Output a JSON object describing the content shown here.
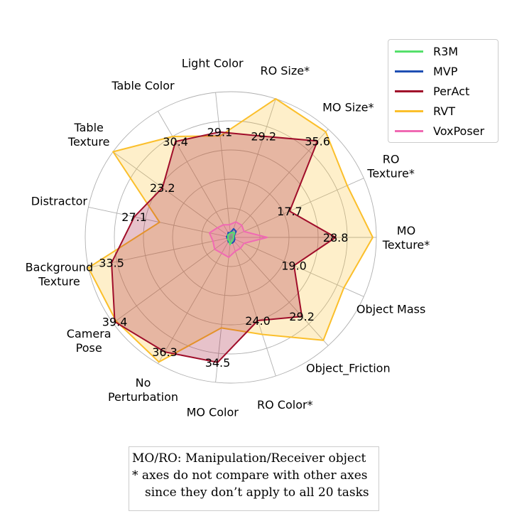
{
  "chart_data": {
    "type": "radar",
    "rmax": 40,
    "grid_levels": [
      8,
      16,
      24,
      32,
      40
    ],
    "grid": true,
    "legend_placement": "top-right",
    "axes": [
      {
        "label": [
          "MO",
          "Texture*"
        ]
      },
      {
        "label": [
          "RO",
          "Texture*"
        ]
      },
      {
        "label": [
          "MO Size*"
        ]
      },
      {
        "label": [
          "RO Size*"
        ]
      },
      {
        "label": [
          "Light Color"
        ]
      },
      {
        "label": [
          "Table Color"
        ]
      },
      {
        "label": [
          "Table",
          "Texture"
        ]
      },
      {
        "label": [
          "Distractor"
        ]
      },
      {
        "label": [
          "Background",
          "Texture"
        ]
      },
      {
        "label": [
          "Camera",
          "Pose"
        ]
      },
      {
        "label": [
          "No",
          "Perturbation"
        ]
      },
      {
        "label": [
          "MO Color"
        ]
      },
      {
        "label": [
          "RO Color*"
        ]
      },
      {
        "label": [
          "Object_Friction"
        ]
      },
      {
        "label": [
          "Object Mass"
        ]
      }
    ],
    "series": [
      {
        "name": "R3M",
        "color": "#55e06b",
        "fill_opacity": 0.25,
        "values": [
          0.8,
          0.8,
          1.6,
          1.5,
          1.2,
          1.0,
          1.0,
          0.8,
          0.8,
          1.0,
          1.0,
          2.0,
          1.0,
          0.8,
          0.8
        ]
      },
      {
        "name": "MVP",
        "color": "#1f4fb3",
        "fill_opacity": 0.25,
        "values": [
          1.0,
          1.0,
          2.2,
          2.5,
          1.3,
          1.5,
          1.0,
          1.2,
          1.0,
          1.0,
          1.4,
          1.6,
          1.6,
          1.4,
          1.2
        ]
      },
      {
        "name": "PerAct",
        "color": "#a00d2a",
        "fill_opacity": 0.25,
        "values": [
          28.8,
          17.7,
          35.6,
          29.2,
          29.1,
          30.4,
          23.2,
          27.1,
          33.5,
          39.4,
          36.3,
          34.5,
          24.0,
          29.2,
          19.0
        ]
      },
      {
        "name": "RVT",
        "color": "#fbbf2b",
        "fill_opacity": 0.25,
        "values": [
          39.0,
          35.0,
          39.0,
          40.0,
          28.0,
          32.0,
          40.0,
          20.0,
          40.0,
          39.0,
          39.5,
          25.0,
          28.0,
          38.0,
          34.0
        ]
      },
      {
        "name": "VoxPoser",
        "color": "#f06ab3",
        "fill_opacity": 0.25,
        "values": [
          10.0,
          4.0,
          4.5,
          4.5,
          3.5,
          4.0,
          4.5,
          6.0,
          5.0,
          5.5,
          5.0,
          5.5,
          4.0,
          4.0,
          4.0
        ]
      }
    ],
    "value_labels": [
      "28.8",
      "17.7",
      "35.6",
      "29.2",
      "29.1",
      "30.4",
      "23.2",
      "27.1",
      "33.5",
      "39.4",
      "36.3",
      "34.5",
      "24.0",
      "29.2",
      "19.0"
    ],
    "note_lines": [
      "MO/RO: Manipulation/Receiver object",
      "* axes do not compare with other axes",
      "since they don’t apply to all 20 tasks"
    ]
  }
}
